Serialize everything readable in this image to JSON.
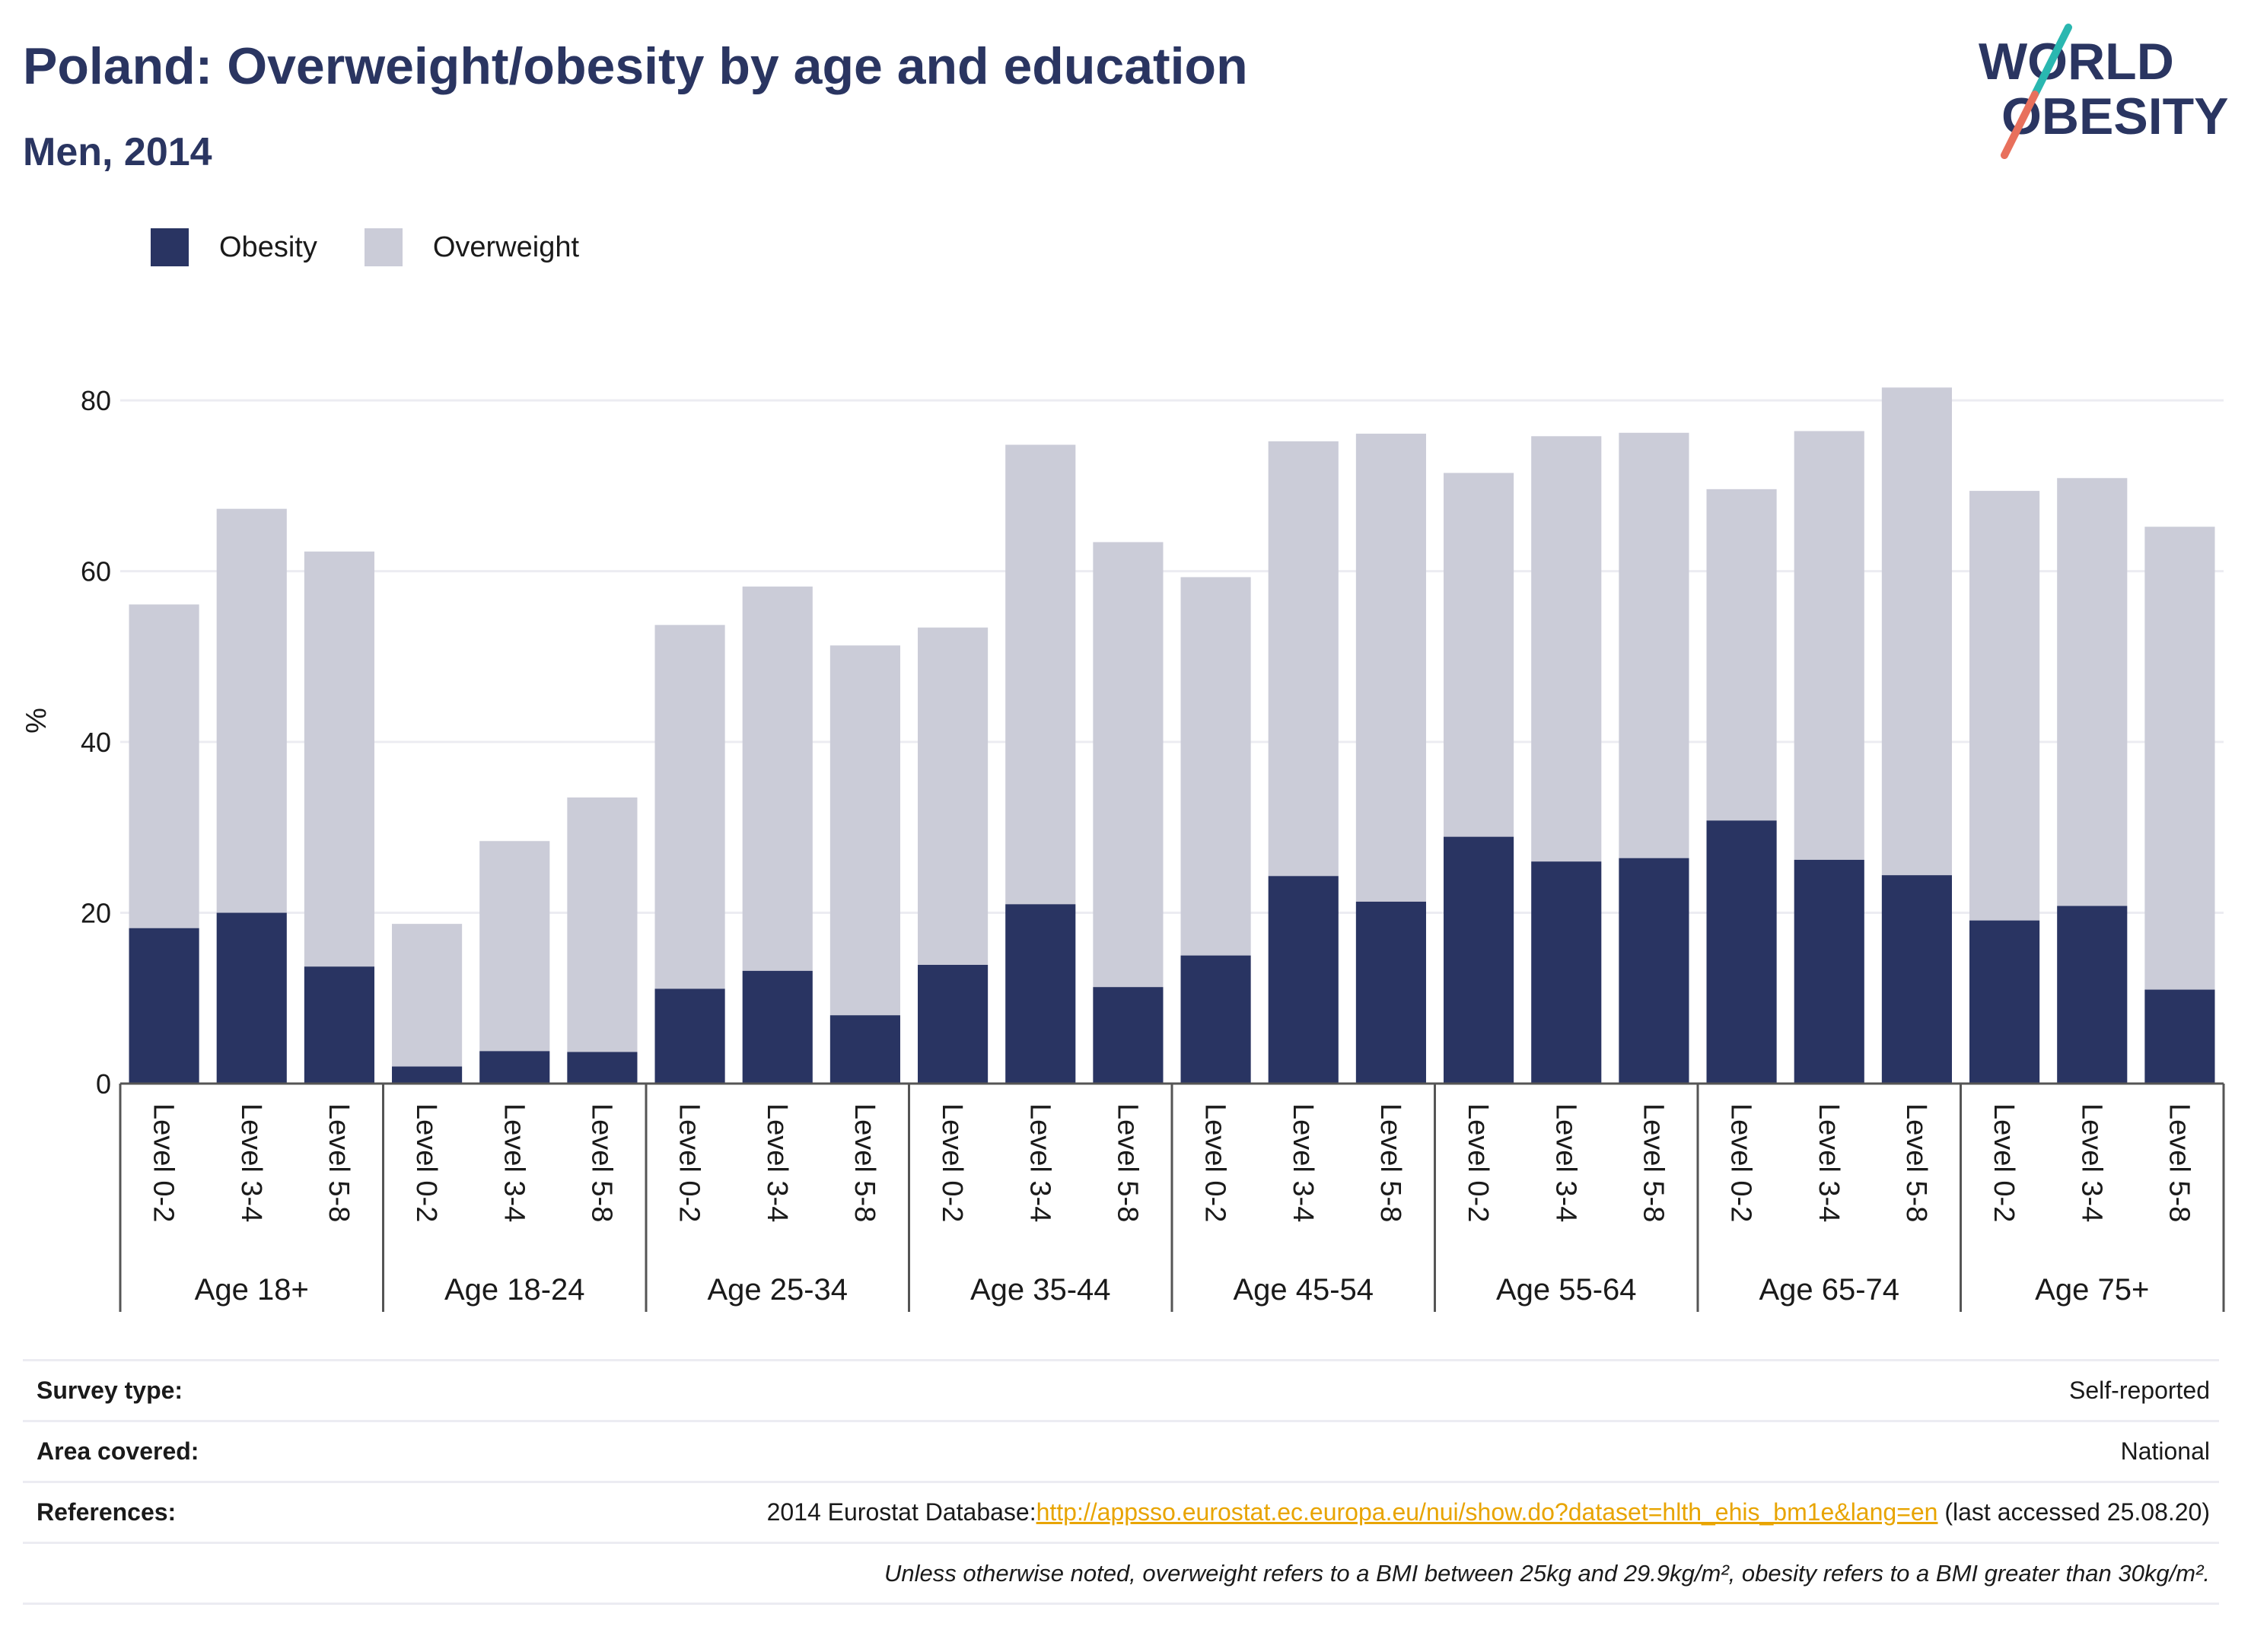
{
  "title": "Poland: Overweight/obesity by age and education",
  "subtitle": "Men, 2014",
  "logo": {
    "line1": "WORLD",
    "line2": "OBESITY"
  },
  "legend": [
    {
      "label": "Obesity",
      "color": "#293462"
    },
    {
      "label": "Overweight",
      "color": "#cbccd8"
    }
  ],
  "chart_data": {
    "type": "bar",
    "stacked": true,
    "ylabel": "%",
    "ylim": [
      0,
      85
    ],
    "yticks": [
      0,
      20,
      40,
      60,
      80
    ],
    "grid": true,
    "legend_position": "top-left",
    "groups": [
      "Age 18+",
      "Age 18-24",
      "Age 25-34",
      "Age 35-44",
      "Age 45-54",
      "Age 55-64",
      "Age 65-74",
      "Age 75+"
    ],
    "levels": [
      "Level 0-2",
      "Level 3-4",
      "Level 5-8"
    ],
    "series": [
      {
        "name": "Obesity",
        "color": "#293462",
        "values": [
          18.2,
          20.0,
          13.7,
          2.0,
          3.8,
          3.7,
          11.1,
          13.2,
          8.0,
          13.9,
          21.0,
          11.3,
          15.0,
          24.3,
          21.3,
          28.9,
          26.0,
          26.4,
          30.8,
          26.2,
          24.4,
          19.1,
          20.8,
          11.0
        ]
      },
      {
        "name": "Overweight",
        "color": "#cbccd8",
        "values": [
          37.9,
          47.3,
          48.6,
          16.7,
          24.6,
          29.8,
          42.6,
          45.0,
          43.3,
          39.5,
          53.8,
          52.1,
          44.3,
          50.9,
          54.8,
          42.6,
          49.8,
          49.8,
          38.8,
          50.2,
          57.1,
          50.3,
          50.1,
          54.2
        ]
      }
    ]
  },
  "table": {
    "survey_type_label": "Survey type:",
    "survey_type_value": "Self-reported",
    "area_label": "Area covered:",
    "area_value": "National",
    "references_label": "References:",
    "references_prefix": "2014 Eurostat Database:",
    "references_link": "http://appsso.eurostat.ec.europa.eu/nui/show.do?dataset=hlth_ehis_bm1e&lang=en",
    "references_suffix": " (last accessed 25.08.20)",
    "note": "Unless otherwise noted, overweight refers to a BMI between 25kg and 29.9kg/m², obesity refers to a BMI greater than 30kg/m²."
  }
}
